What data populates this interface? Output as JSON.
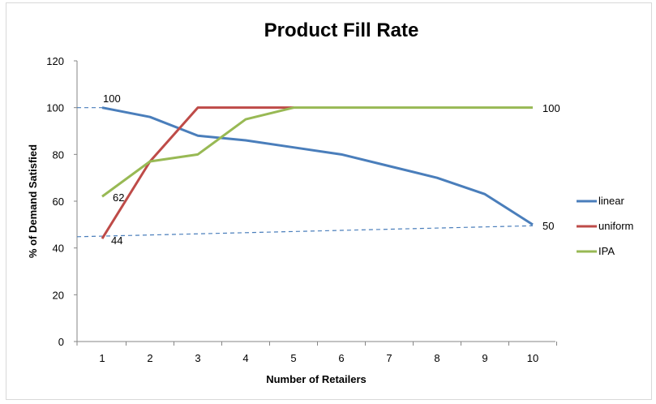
{
  "chart_data": {
    "type": "line",
    "title": "Product Fill Rate",
    "xlabel": "Number of Retailers",
    "ylabel": "% of Demand Satisfied",
    "categories": [
      "1",
      "2",
      "3",
      "4",
      "5",
      "6",
      "7",
      "8",
      "9",
      "10"
    ],
    "yticks": [
      "0",
      "20",
      "40",
      "60",
      "80",
      "100",
      "120"
    ],
    "ylim": [
      0,
      120
    ],
    "grid": false,
    "legend_position": "right",
    "series": [
      {
        "name": "linear",
        "color": "#4a7ebb",
        "values": [
          100,
          96,
          88,
          86,
          83,
          80,
          75,
          70,
          63,
          50
        ]
      },
      {
        "name": "uniform",
        "color": "#be4b48",
        "values": [
          44,
          77,
          100,
          100,
          100,
          null,
          null,
          null,
          null,
          null
        ]
      },
      {
        "name": "IPA",
        "color": "#98b954",
        "values": [
          62,
          77,
          80,
          95,
          100,
          100,
          100,
          100,
          100,
          100
        ]
      }
    ],
    "annotations": [
      "100",
      "62",
      "44",
      "100",
      "50"
    ]
  }
}
